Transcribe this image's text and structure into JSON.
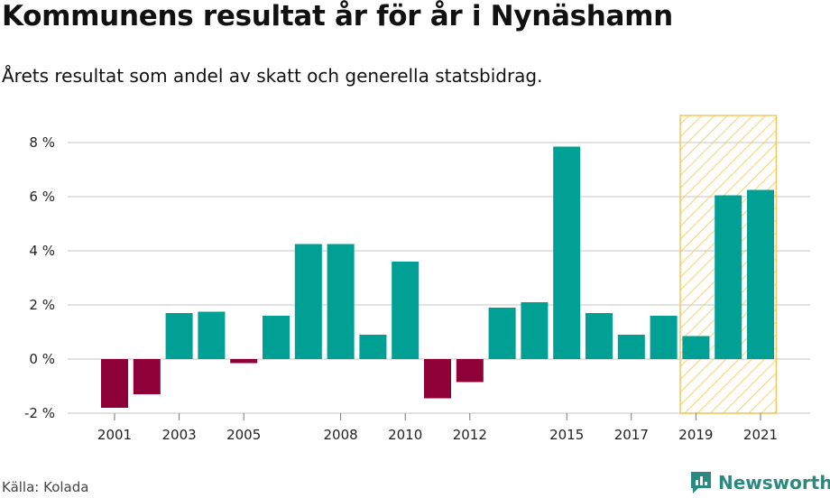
{
  "header": {
    "title": "Kommunens resultat år för år i Nynäshamn",
    "subtitle": "Årets resultat som andel av skatt och generella statsbidrag."
  },
  "footer": {
    "source": "Källa: Kolada",
    "brand": "Newsworthy"
  },
  "colors": {
    "positive": "#00a095",
    "negative": "#8e0038",
    "highlight": "#f5c75a",
    "grid": "#d9d9d9"
  },
  "chart_data": {
    "type": "bar",
    "categories": [
      2001,
      2002,
      2003,
      2004,
      2005,
      2006,
      2007,
      2008,
      2009,
      2010,
      2011,
      2012,
      2013,
      2014,
      2015,
      2016,
      2017,
      2018,
      2019,
      2020,
      2021
    ],
    "values": [
      -1.8,
      -1.3,
      1.7,
      1.75,
      -0.15,
      1.6,
      4.25,
      4.25,
      0.9,
      3.6,
      -1.45,
      -0.85,
      1.9,
      2.1,
      7.85,
      1.7,
      0.9,
      1.6,
      0.85,
      6.05,
      6.25
    ],
    "x_tick_labels": [
      "2001",
      "2003",
      "2005",
      "2008",
      "2010",
      "2012",
      "2015",
      "2017",
      "2019",
      "2021"
    ],
    "y_ticks": [
      -2,
      0,
      2,
      4,
      6,
      8
    ],
    "y_tick_labels": [
      "-2 %",
      "0 %",
      "2 %",
      "4 %",
      "6 %",
      "8 %"
    ],
    "ylim": [
      -2,
      9
    ],
    "highlight_range": [
      2019,
      2021
    ],
    "grid": true
  }
}
